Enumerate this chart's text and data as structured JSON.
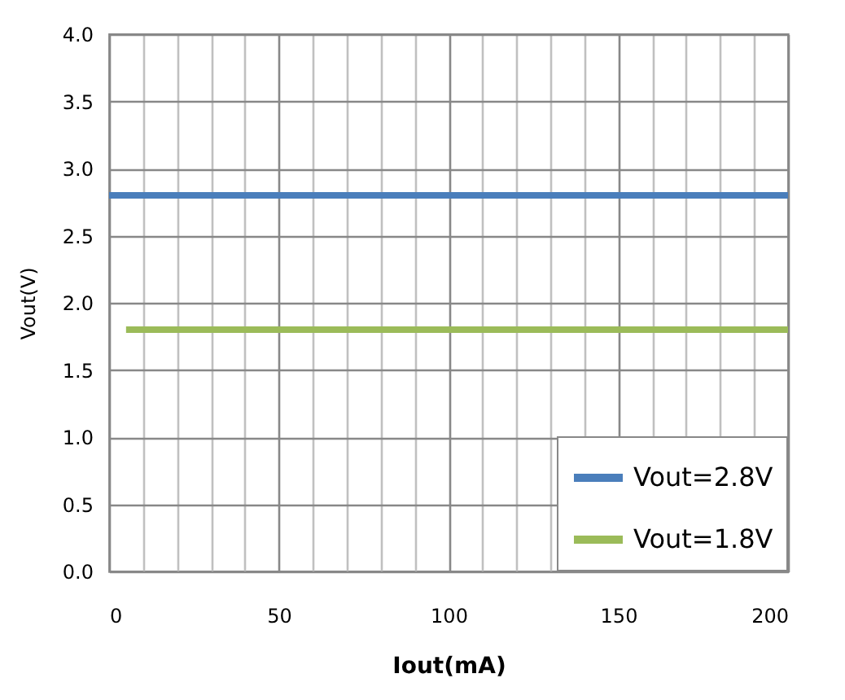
{
  "chart_data": {
    "type": "line",
    "xlabel": "Iout(mA)",
    "ylabel": "Vout(V)",
    "xlim": [
      0,
      200
    ],
    "ylim": [
      0,
      4
    ],
    "xticks": [
      0,
      {
        "value": 10,
        "label": null
      },
      {
        "value": 20,
        "label": null
      },
      {
        "value": 30,
        "label": null
      },
      {
        "value": 40,
        "label": null
      },
      50,
      {
        "value": 60,
        "label": null
      },
      {
        "value": 70,
        "label": null
      },
      {
        "value": 80,
        "label": null
      },
      {
        "value": 90,
        "label": null
      },
      100,
      {
        "value": 110,
        "label": null
      },
      {
        "value": 120,
        "label": null
      },
      {
        "value": 130,
        "label": null
      },
      {
        "value": 140,
        "label": null
      },
      150,
      {
        "value": 160,
        "label": null
      },
      {
        "value": 170,
        "label": null
      },
      {
        "value": 180,
        "label": null
      },
      {
        "value": 190,
        "label": null
      },
      200
    ],
    "yticks": [
      {
        "value": 0,
        "label": "0.0"
      },
      {
        "value": 0.5,
        "label": "0.5"
      },
      {
        "value": 1,
        "label": "1.0"
      },
      {
        "value": 1.5,
        "label": "1.5"
      },
      {
        "value": 2,
        "label": "2.0"
      },
      {
        "value": 2.5,
        "label": "2.5"
      },
      {
        "value": 3,
        "label": "3.0"
      },
      {
        "value": 3.5,
        "label": "3.5"
      },
      {
        "value": 4,
        "label": "4.0"
      }
    ],
    "grid": true,
    "legend": "bottom right",
    "series": [
      {
        "name": "Vout=2.8V",
        "color": "#4a7ebb",
        "x": [
          0,
          200
        ],
        "values": [
          2.8,
          2.8
        ]
      },
      {
        "name": "Vout=1.8V",
        "color": "#9bbb59",
        "x": [
          5,
          200
        ],
        "values": [
          1.8,
          1.8
        ]
      }
    ]
  }
}
